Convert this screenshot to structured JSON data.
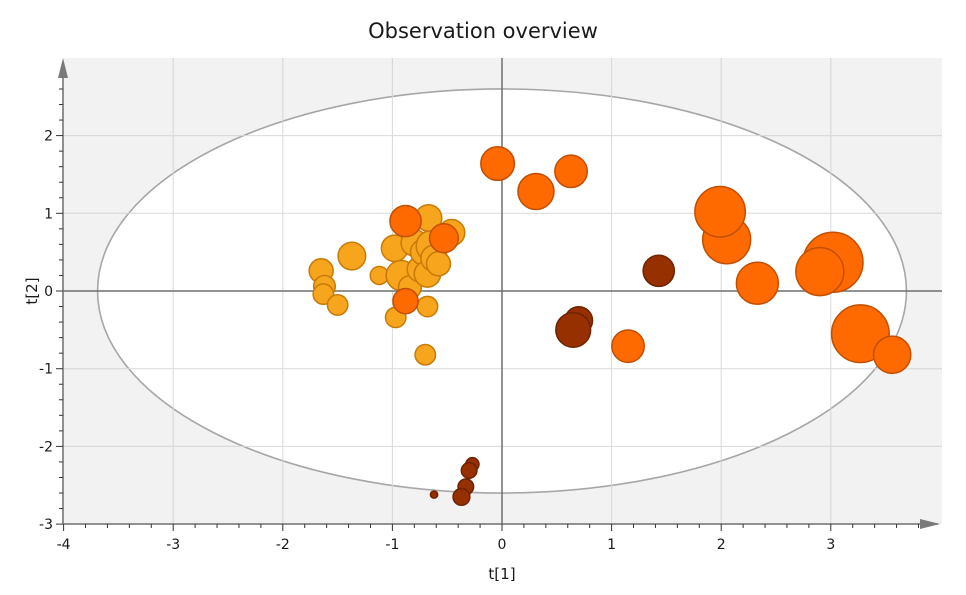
{
  "chart_data": {
    "type": "scatter",
    "title": "Observation overview",
    "xlabel": "t[1]",
    "ylabel": "t[2]",
    "xlim": [
      -4,
      4
    ],
    "ylim": [
      -3,
      3
    ],
    "xticks": [
      -4,
      -3,
      -2,
      -1,
      0,
      1,
      2,
      3
    ],
    "yticks": [
      2,
      1,
      0,
      -1,
      -2,
      -3
    ],
    "grid": true,
    "hotelling_ellipse": {
      "center": [
        0,
        0
      ],
      "semi_axis_x": 3.69,
      "semi_axis_y": 2.6
    },
    "colors": {
      "light_orange": "#F7A51C",
      "orange": "#FF6A00",
      "dark_brown": "#963000",
      "plot_background": "#F2F2F2"
    },
    "points": [
      {
        "x": -1.65,
        "y": 0.26,
        "size": 1.0,
        "color": "light_orange"
      },
      {
        "x": -1.62,
        "y": 0.06,
        "size": 0.9,
        "color": "light_orange"
      },
      {
        "x": -1.63,
        "y": -0.04,
        "size": 0.85,
        "color": "light_orange"
      },
      {
        "x": -1.5,
        "y": -0.18,
        "size": 0.85,
        "color": "light_orange"
      },
      {
        "x": -1.37,
        "y": 0.45,
        "size": 1.15,
        "color": "light_orange"
      },
      {
        "x": -1.12,
        "y": 0.2,
        "size": 0.75,
        "color": "light_orange"
      },
      {
        "x": -0.98,
        "y": 0.55,
        "size": 1.1,
        "color": "light_orange"
      },
      {
        "x": -0.97,
        "y": -0.34,
        "size": 0.85,
        "color": "light_orange"
      },
      {
        "x": -0.92,
        "y": 0.2,
        "size": 1.25,
        "color": "light_orange"
      },
      {
        "x": -0.84,
        "y": 0.05,
        "size": 0.95,
        "color": "light_orange"
      },
      {
        "x": -0.8,
        "y": 0.62,
        "size": 1.1,
        "color": "light_orange"
      },
      {
        "x": -0.75,
        "y": 0.28,
        "size": 1.05,
        "color": "light_orange"
      },
      {
        "x": -0.72,
        "y": 0.5,
        "size": 1.05,
        "color": "light_orange"
      },
      {
        "x": -0.7,
        "y": -0.82,
        "size": 0.85,
        "color": "light_orange"
      },
      {
        "x": -0.68,
        "y": -0.2,
        "size": 0.85,
        "color": "light_orange"
      },
      {
        "x": -0.68,
        "y": 0.22,
        "size": 1.1,
        "color": "light_orange"
      },
      {
        "x": -0.64,
        "y": 0.58,
        "size": 1.3,
        "color": "light_orange"
      },
      {
        "x": -0.62,
        "y": 0.42,
        "size": 1.1,
        "color": "light_orange"
      },
      {
        "x": -0.58,
        "y": 0.35,
        "size": 1.0,
        "color": "light_orange"
      },
      {
        "x": -0.67,
        "y": 0.94,
        "size": 1.1,
        "color": "light_orange"
      },
      {
        "x": -0.46,
        "y": 0.75,
        "size": 1.1,
        "color": "light_orange"
      },
      {
        "x": -0.88,
        "y": 0.9,
        "size": 1.3,
        "color": "orange"
      },
      {
        "x": -0.88,
        "y": -0.13,
        "size": 1.05,
        "color": "orange"
      },
      {
        "x": -0.53,
        "y": 0.68,
        "size": 1.2,
        "color": "orange"
      },
      {
        "x": -0.04,
        "y": 1.64,
        "size": 1.4,
        "color": "orange"
      },
      {
        "x": 0.31,
        "y": 1.28,
        "size": 1.5,
        "color": "orange"
      },
      {
        "x": 0.63,
        "y": 1.54,
        "size": 1.35,
        "color": "orange"
      },
      {
        "x": 1.15,
        "y": -0.71,
        "size": 1.35,
        "color": "orange"
      },
      {
        "x": 2.05,
        "y": 0.66,
        "size": 2.0,
        "color": "orange"
      },
      {
        "x": 1.99,
        "y": 1.02,
        "size": 2.1,
        "color": "orange"
      },
      {
        "x": 2.33,
        "y": 0.1,
        "size": 1.75,
        "color": "orange"
      },
      {
        "x": 3.02,
        "y": 0.37,
        "size": 2.5,
        "color": "orange"
      },
      {
        "x": 2.9,
        "y": 0.25,
        "size": 2.0,
        "color": "orange"
      },
      {
        "x": 3.27,
        "y": -0.55,
        "size": 2.4,
        "color": "orange"
      },
      {
        "x": 3.56,
        "y": -0.82,
        "size": 1.55,
        "color": "orange"
      },
      {
        "x": 0.7,
        "y": -0.38,
        "size": 1.15,
        "color": "dark_brown"
      },
      {
        "x": 0.65,
        "y": -0.5,
        "size": 1.45,
        "color": "dark_brown"
      },
      {
        "x": 1.43,
        "y": 0.26,
        "size": 1.3,
        "color": "dark_brown"
      },
      {
        "x": -0.27,
        "y": -2.23,
        "size": 0.55,
        "color": "dark_brown"
      },
      {
        "x": -0.3,
        "y": -2.31,
        "size": 0.65,
        "color": "dark_brown"
      },
      {
        "x": -0.33,
        "y": -2.52,
        "size": 0.65,
        "color": "dark_brown"
      },
      {
        "x": -0.37,
        "y": -2.65,
        "size": 0.7,
        "color": "dark_brown"
      },
      {
        "x": -0.62,
        "y": -2.62,
        "size": 0.3,
        "color": "dark_brown"
      }
    ]
  }
}
